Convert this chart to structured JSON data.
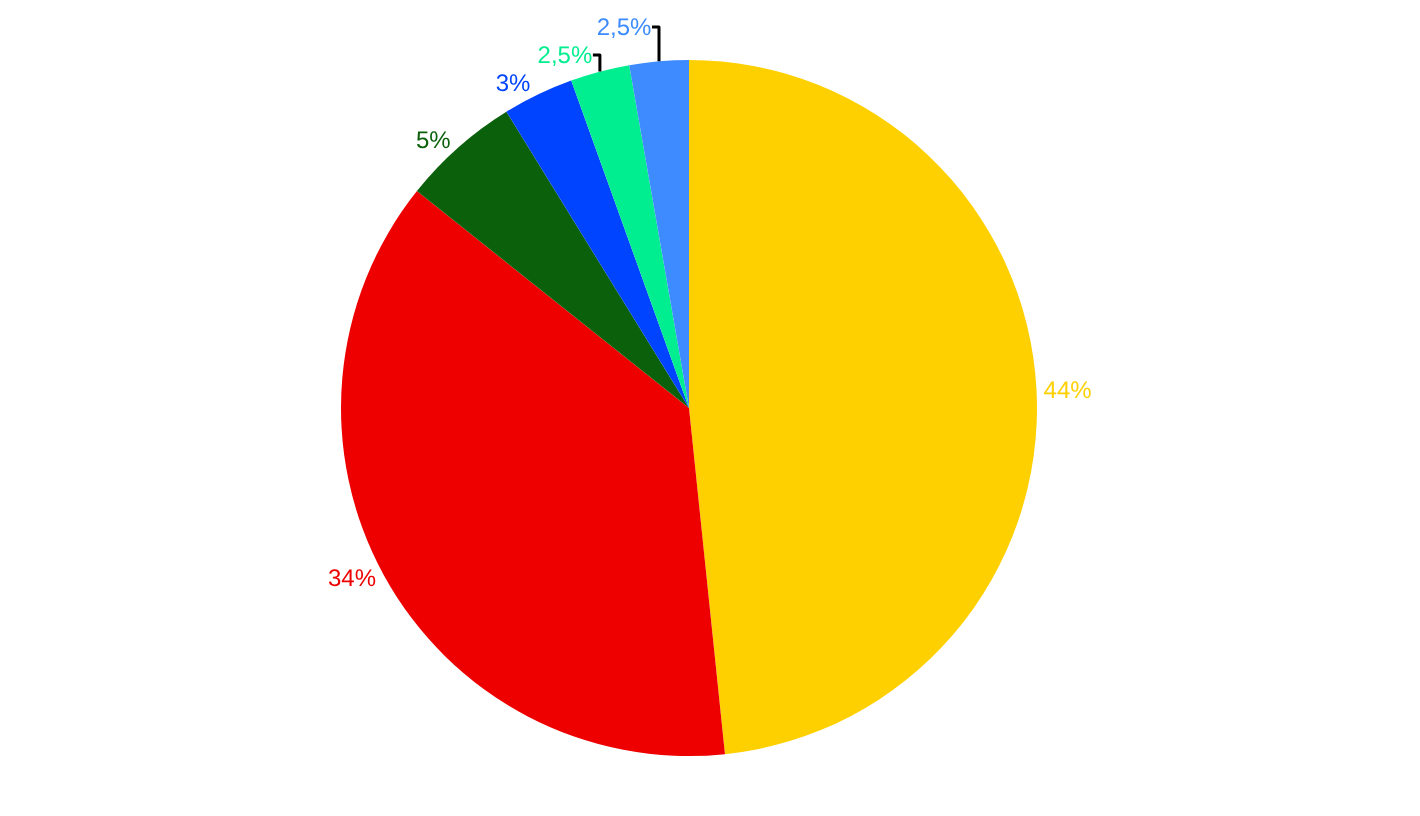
{
  "chart_data": {
    "type": "pie",
    "categories": [
      null,
      null,
      null,
      null,
      null,
      null
    ],
    "values": [
      44,
      34,
      5,
      3,
      2.5,
      2.5
    ],
    "value_labels": [
      "44%",
      "34%",
      "5%",
      "3%",
      "2,5%",
      "2,5%"
    ],
    "colors": [
      "#ffd000",
      "#ee0000",
      "#0b600b",
      "#0044ff",
      "#00ee90",
      "#3d8bff"
    ],
    "legend": false
  }
}
